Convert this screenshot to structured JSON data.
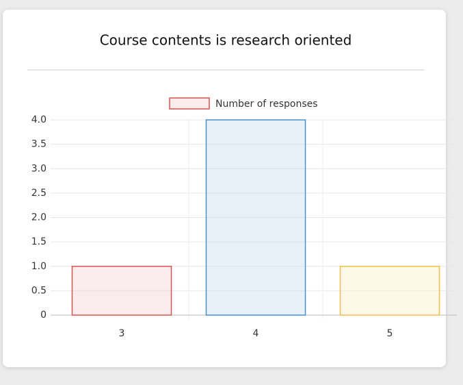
{
  "chart_data": {
    "type": "bar",
    "title": "Course contents is research oriented",
    "categories": [
      "3",
      "4",
      "5"
    ],
    "series": [
      {
        "name": "Number of responses",
        "values": [
          1,
          4,
          1
        ],
        "colors": [
          "#d9534f",
          "#4a90c8",
          "#f0c04a"
        ],
        "fills": [
          "rgba(240,200,200,0.35)",
          "rgba(190,215,235,0.35)",
          "rgba(250,235,190,0.35)"
        ]
      }
    ],
    "ylim": [
      0,
      4
    ],
    "yticks": [
      0,
      {
        "value": 0.5,
        "label": "0.5"
      },
      {
        "value": 1,
        "label": "1.0"
      },
      1.5,
      {
        "value": 2,
        "label": "2.0"
      },
      2.5,
      {
        "value": 3,
        "label": "3.0"
      },
      3.5,
      {
        "value": 4,
        "label": "4.0"
      }
    ],
    "grid": true,
    "legend": "top"
  }
}
